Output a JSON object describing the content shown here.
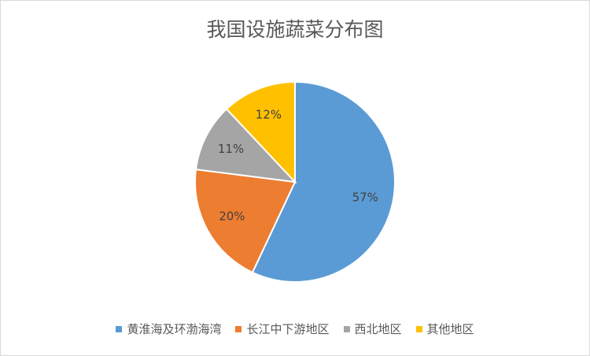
{
  "chart_data": {
    "type": "pie",
    "title": "我国设施蔬菜分布图",
    "categories": [
      "黄淮海及环渤海湾",
      "长江中下游地区",
      "西北地区",
      "其他地区"
    ],
    "values": [
      57,
      20,
      11,
      12
    ],
    "value_labels": [
      "57%",
      "20%",
      "11%",
      "12%"
    ],
    "colors": [
      "#5b9bd5",
      "#ed7d31",
      "#a5a5a5",
      "#ffc000"
    ],
    "legend": "bottom"
  }
}
